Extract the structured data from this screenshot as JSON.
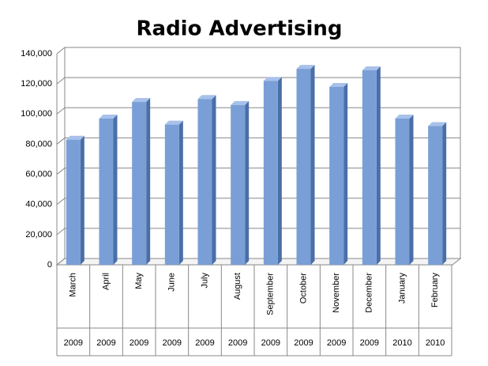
{
  "chart_data": {
    "type": "bar3d",
    "title": "Radio Advertising",
    "categories": [
      "March",
      "April",
      "May",
      "June",
      "July",
      "August",
      "September",
      "October",
      "November",
      "December",
      "January",
      "February"
    ],
    "category_years": [
      "2009",
      "2009",
      "2009",
      "2009",
      "2009",
      "2009",
      "2009",
      "2009",
      "2009",
      "2009",
      "2010",
      "2010"
    ],
    "values": [
      83000,
      97000,
      108000,
      93000,
      110000,
      106000,
      122000,
      130000,
      118000,
      129000,
      97000,
      92000
    ],
    "color": "#7a9fd6",
    "ylim": [
      0,
      140000
    ],
    "yticks": [
      0,
      {
        "value": 20000,
        "label": "20,000"
      },
      {
        "value": 40000,
        "label": "40,000"
      },
      {
        "value": 60000,
        "label": "60,000"
      },
      {
        "value": 80000,
        "label": "80,000"
      },
      {
        "value": 100000,
        "label": "100,000"
      },
      {
        "value": 120000,
        "label": "120,000"
      },
      {
        "value": 140000,
        "label": "140,000"
      }
    ],
    "grid": true
  }
}
